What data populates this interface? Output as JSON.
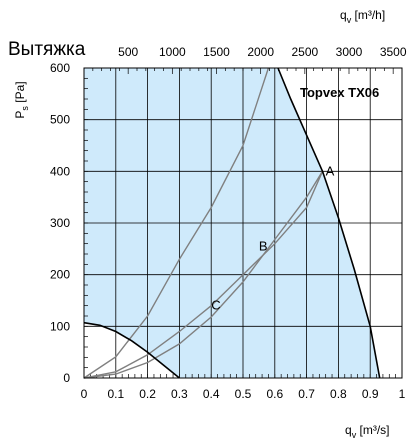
{
  "chart_data": {
    "type": "line",
    "title": "Вытяжка",
    "model": "Topvex TX06",
    "x_bottom": {
      "label": "q",
      "label_sub": "v",
      "label_unit": " [m³/s]",
      "range": [
        0,
        1
      ],
      "ticks": [
        0,
        0.1,
        0.2,
        0.3,
        0.4,
        0.5,
        0.6,
        0.7,
        0.8,
        0.9,
        1
      ],
      "tick_labels": [
        "0",
        "0.1",
        "0.2",
        "0.3",
        "0.4",
        "0.5",
        "0.6",
        "0.7",
        "0.8",
        "0.9",
        "1"
      ]
    },
    "x_top": {
      "label": "q",
      "label_sub": "v",
      "label_unit": " [m³/h]",
      "ticks": [
        500,
        1000,
        1500,
        2000,
        2500,
        3000,
        3500
      ],
      "tick_labels": [
        "500",
        "1000",
        "1500",
        "2000",
        "2500",
        "3000",
        "3500"
      ]
    },
    "y": {
      "label": "P",
      "label_sub": "s",
      "label_unit": " [Pa]",
      "range": [
        0,
        600
      ],
      "ticks": [
        0,
        100,
        200,
        300,
        400,
        500,
        600
      ],
      "tick_labels": [
        "0",
        "100",
        "200",
        "300",
        "400",
        "500",
        "600"
      ]
    },
    "grid": true,
    "operating_area_color": "#cfeafb",
    "max_curve": [
      [
        0.61,
        600
      ],
      [
        0.65,
        540
      ],
      [
        0.7,
        470
      ],
      [
        0.75,
        400
      ],
      [
        0.8,
        310
      ],
      [
        0.85,
        210
      ],
      [
        0.9,
        100
      ],
      [
        0.93,
        0
      ]
    ],
    "min_curve": [
      [
        0,
        107
      ],
      [
        0.05,
        102
      ],
      [
        0.1,
        90
      ],
      [
        0.15,
        72
      ],
      [
        0.2,
        50
      ],
      [
        0.25,
        25
      ],
      [
        0.3,
        0
      ]
    ],
    "system_curves": [
      {
        "name": "A",
        "points": [
          [
            0,
            0
          ],
          [
            0.1,
            7.5
          ],
          [
            0.2,
            30
          ],
          [
            0.3,
            66
          ],
          [
            0.4,
            118
          ],
          [
            0.5,
            186
          ],
          [
            0.6,
            268
          ],
          [
            0.7,
            350
          ],
          [
            0.75,
            400
          ]
        ]
      },
      {
        "name": "B",
        "points": [
          [
            0,
            0
          ],
          [
            0.1,
            41
          ],
          [
            0.2,
            120
          ],
          [
            0.3,
            230
          ],
          [
            0.4,
            330
          ],
          [
            0.5,
            450
          ],
          [
            0.58,
            600
          ]
        ]
      },
      {
        "name": "C",
        "points": [
          [
            0,
            0
          ],
          [
            0.1,
            12
          ],
          [
            0.2,
            45
          ],
          [
            0.3,
            90
          ],
          [
            0.4,
            140
          ],
          [
            0.5,
            200
          ],
          [
            0.6,
            260
          ],
          [
            0.7,
            330
          ],
          [
            0.75,
            400
          ]
        ]
      }
    ],
    "labels": [
      {
        "text": "A",
        "x": 0.76,
        "y": 400
      },
      {
        "text": "B",
        "x": 0.55,
        "y": 255
      },
      {
        "text": "C",
        "x": 0.4,
        "y": 140
      }
    ],
    "colors": {
      "curve": "#808080",
      "boundary": "#000000",
      "grid": "#000000"
    }
  }
}
